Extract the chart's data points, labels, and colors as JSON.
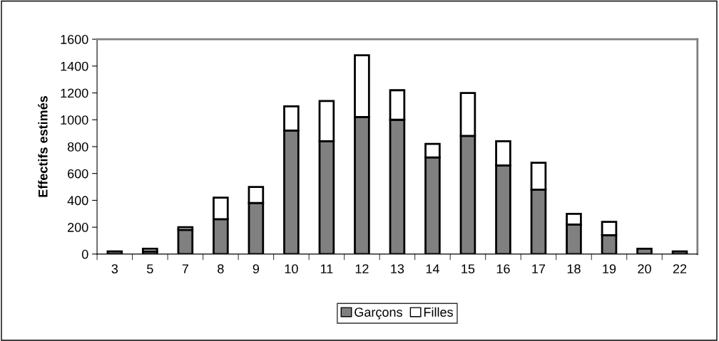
{
  "chart_data": {
    "type": "bar",
    "ylabel": "Effectifs estimés",
    "categories": [
      "3",
      "5",
      "7",
      "8",
      "9",
      "10",
      "11",
      "12",
      "13",
      "14",
      "15",
      "16",
      "17",
      "18",
      "19",
      "20",
      "22"
    ],
    "stacked": true,
    "series": [
      {
        "name": "Garçons",
        "color": "#808080",
        "values": [
          20,
          20,
          180,
          260,
          380,
          920,
          840,
          1020,
          1000,
          720,
          880,
          660,
          480,
          220,
          140,
          40,
          20
        ]
      },
      {
        "name": "Filles",
        "color": "#ffffff",
        "values": [
          null,
          20,
          20,
          160,
          120,
          180,
          300,
          460,
          220,
          100,
          320,
          180,
          200,
          80,
          100,
          null,
          null
        ]
      }
    ],
    "ylim": [
      0,
      1600
    ],
    "yticks": [
      0,
      200,
      400,
      600,
      800,
      1000,
      1200,
      1400,
      1600
    ],
    "grid": false,
    "legend": "bottom"
  }
}
